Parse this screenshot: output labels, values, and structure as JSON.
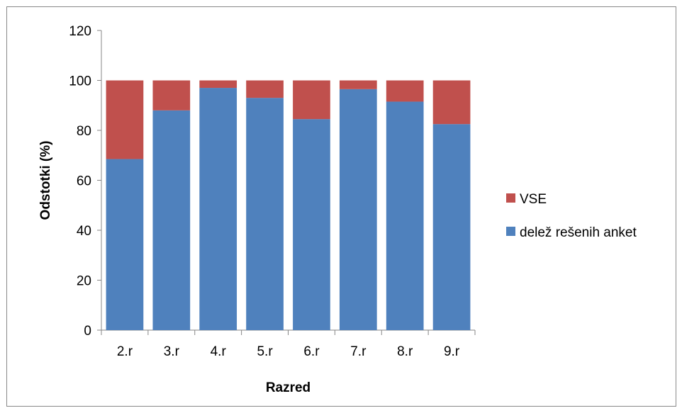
{
  "chart_data": {
    "type": "bar",
    "stacked": true,
    "title": "",
    "xlabel": "Razred",
    "ylabel": "Odstotki (%)",
    "categories": [
      "2.r",
      "3.r",
      "4.r",
      "5.r",
      "6.r",
      "7.r",
      "8.r",
      "9.r"
    ],
    "series": [
      {
        "name": "delež rešenih anket",
        "color": "#4F81BD",
        "values": [
          68.5,
          88,
          97,
          93,
          84.5,
          96.5,
          91.5,
          82.5
        ]
      },
      {
        "name": "VSE",
        "color": "#C0504D",
        "values": [
          31.5,
          12,
          3,
          7,
          15.5,
          3.5,
          8.5,
          17.5
        ]
      }
    ],
    "ylim": [
      0,
      120
    ],
    "yticks": [
      0,
      20,
      40,
      60,
      80,
      100,
      120
    ],
    "grid": false,
    "legend": "right"
  }
}
